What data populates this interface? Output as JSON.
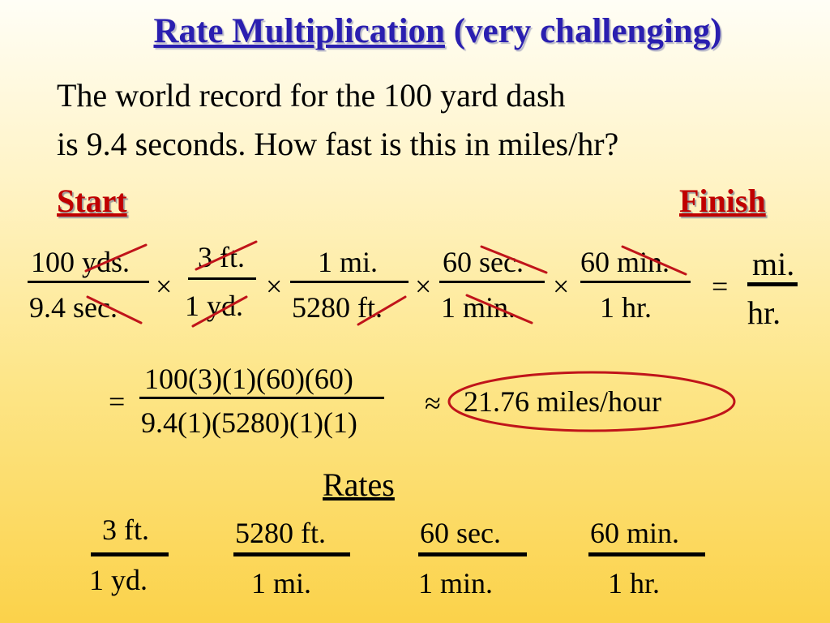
{
  "title": {
    "main": "Rate Multiplication",
    "rest": " (very challenging)"
  },
  "problem": {
    "line1": "The world record for the 100 yard dash",
    "line2": "is 9.4 seconds.  How fast is this in miles/hr?"
  },
  "labels": {
    "start": "Start",
    "finish": "Finish"
  },
  "conversion": {
    "f1": {
      "num": "100 yds.",
      "den": "9.4  sec."
    },
    "f2": {
      "num": "3 ft.",
      "den": "1 yd."
    },
    "f3": {
      "num": "1 mi.",
      "den": "5280 ft."
    },
    "f4": {
      "num": "60  sec.",
      "den": "1  min."
    },
    "f5": {
      "num": "60  min.",
      "den": "1 hr."
    },
    "times": "×",
    "equals": "=",
    "result": {
      "num": "mi.",
      "den": "hr."
    }
  },
  "computation": {
    "equals": "=",
    "num": "100(3)(1)(60)(60)",
    "den": "9.4(1)(5280)(1)(1)",
    "approx": "≈",
    "answer": "21.76 miles/hour"
  },
  "rates_section": {
    "heading": "Rates",
    "items": [
      {
        "num": "3 ft.",
        "den": "1 yd."
      },
      {
        "num": "5280 ft.",
        "den": "1 mi."
      },
      {
        "num": "60  sec.",
        "den": "1  min."
      },
      {
        "num": "60  min.",
        "den": "1 hr."
      }
    ]
  },
  "colors": {
    "title": "#2a1fb0",
    "label": "#c00000",
    "strike": "#c0141a",
    "circle": "#c0141a"
  }
}
